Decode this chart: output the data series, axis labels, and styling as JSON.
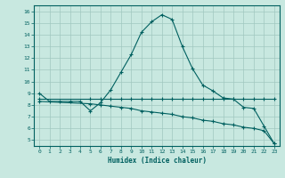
{
  "xlabel": "Humidex (Indice chaleur)",
  "ylabel": "",
  "background_color": "#c8e8e0",
  "grid_color": "#a0c8c0",
  "line_color": "#006060",
  "xlim": [
    -0.5,
    23.5
  ],
  "ylim": [
    4.5,
    16.5
  ],
  "xticks": [
    0,
    1,
    2,
    3,
    4,
    5,
    6,
    7,
    8,
    9,
    10,
    11,
    12,
    13,
    14,
    15,
    16,
    17,
    18,
    19,
    20,
    21,
    22,
    23
  ],
  "yticks": [
    5,
    6,
    7,
    8,
    9,
    10,
    11,
    12,
    13,
    14,
    15,
    16
  ],
  "line1_x": [
    0,
    1,
    2,
    3,
    4,
    5,
    6,
    7,
    8,
    9,
    10,
    11,
    12,
    13,
    14,
    15,
    16,
    17,
    18,
    19,
    20,
    21,
    22,
    23
  ],
  "line1_y": [
    9.0,
    8.3,
    8.3,
    8.3,
    8.3,
    7.5,
    8.2,
    9.3,
    10.8,
    12.3,
    14.2,
    15.1,
    15.7,
    15.3,
    13.0,
    11.1,
    9.7,
    9.2,
    8.6,
    8.5,
    7.8,
    7.7,
    6.2,
    4.7
  ],
  "line2_x": [
    0,
    5,
    6,
    7,
    8,
    9,
    10,
    11,
    12,
    13,
    14,
    15,
    16,
    17,
    18,
    19,
    20,
    21,
    22,
    23
  ],
  "line2_y": [
    8.5,
    8.5,
    8.5,
    8.5,
    8.5,
    8.5,
    8.5,
    8.5,
    8.5,
    8.5,
    8.5,
    8.5,
    8.5,
    8.5,
    8.5,
    8.5,
    8.5,
    8.5,
    8.5,
    8.5
  ],
  "line3_x": [
    0,
    5,
    6,
    7,
    8,
    9,
    10,
    11,
    12,
    13,
    14,
    15,
    16,
    17,
    18,
    19,
    20,
    21,
    22,
    23
  ],
  "line3_y": [
    8.3,
    8.1,
    8.0,
    7.9,
    7.8,
    7.7,
    7.5,
    7.4,
    7.3,
    7.2,
    7.0,
    6.9,
    6.7,
    6.6,
    6.4,
    6.3,
    6.1,
    6.0,
    5.8,
    4.7
  ]
}
